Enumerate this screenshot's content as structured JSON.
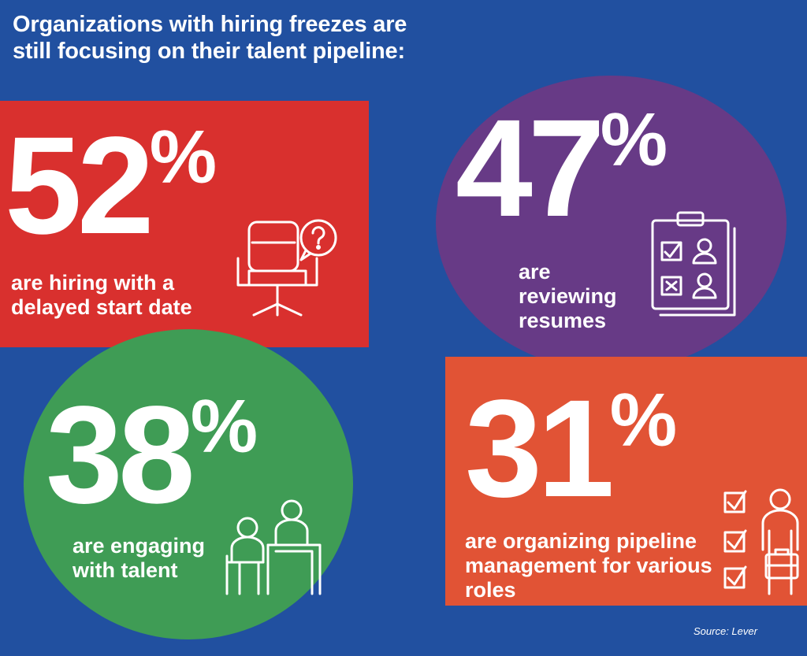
{
  "headline": {
    "line1": "Organizations with hiring freezes are",
    "line2": "still focusing on their talent pipeline:"
  },
  "stats": [
    {
      "id": "delayed-start",
      "value": "52",
      "unit": "%",
      "label_lines": [
        "are hiring with a",
        "delayed start date"
      ],
      "color": "#d9302e",
      "icon": "office-chair-question-icon"
    },
    {
      "id": "reviewing-resumes",
      "value": "47",
      "unit": "%",
      "label_lines": [
        "are",
        "reviewing",
        "resumes"
      ],
      "color": "#673a86",
      "icon": "clipboard-candidates-icon"
    },
    {
      "id": "engaging-talent",
      "value": "38",
      "unit": "%",
      "label_lines": [
        "are engaging",
        "with talent"
      ],
      "color": "#3f9c55",
      "icon": "interview-people-icon"
    },
    {
      "id": "organizing-pipeline",
      "value": "31",
      "unit": "%",
      "label_lines": [
        "are organizing pipeline",
        "management for various",
        "roles"
      ],
      "color": "#e15335",
      "icon": "checklist-person-briefcase-icon"
    }
  ],
  "source": "Source: Lever",
  "colors": {
    "background": "#2150a0",
    "text": "#ffffff"
  }
}
